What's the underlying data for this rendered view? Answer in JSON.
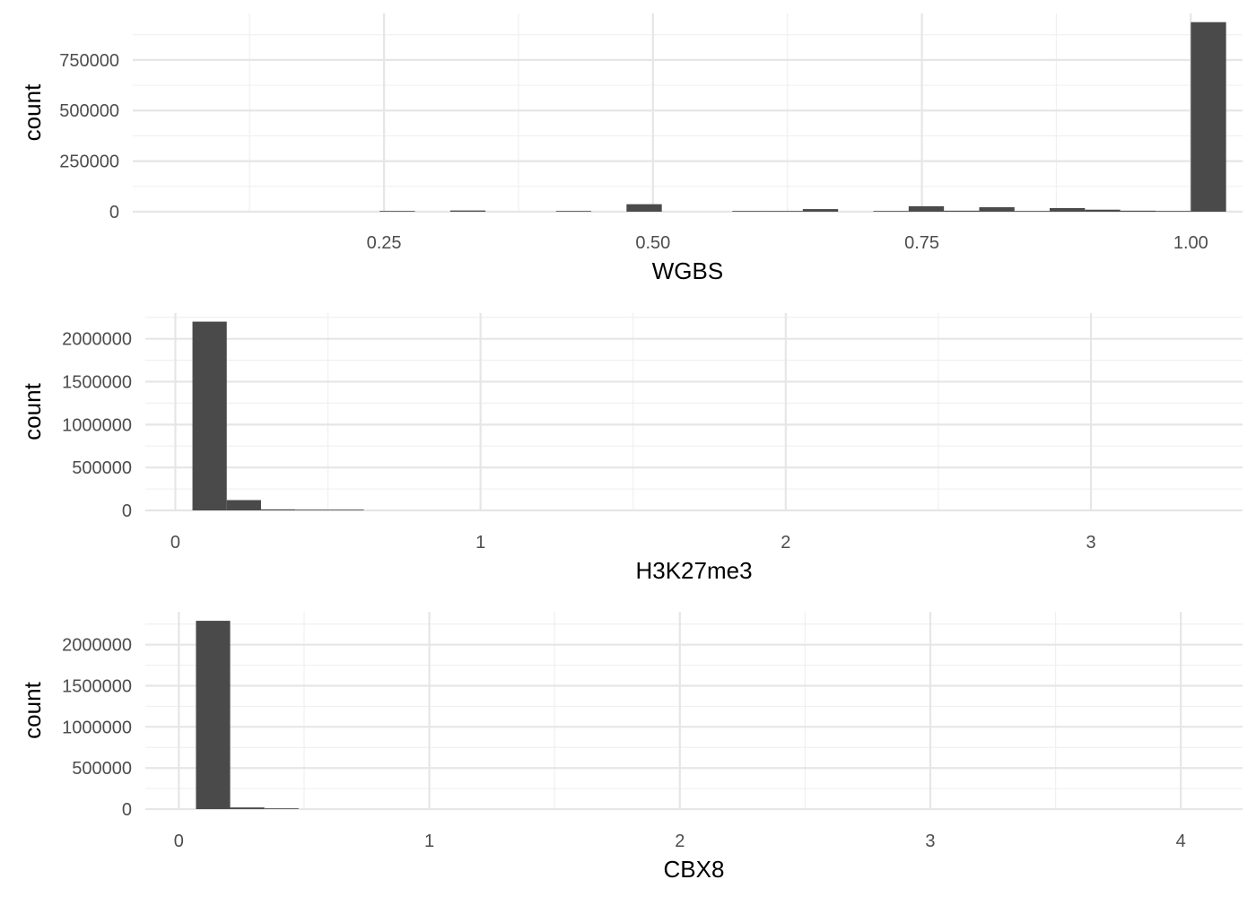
{
  "colors": {
    "bar": "#4a4a4a",
    "grid_major": "#e6e6e6",
    "grid_minor": "#f0f0f0",
    "tick_text": "#4d4d4d",
    "background": "#ffffff"
  },
  "chart_data": [
    {
      "type": "bar",
      "xlabel": "WGBS",
      "ylabel": "count",
      "grid": true,
      "xlim": [
        0.0164,
        1.0481
      ],
      "ylim": [
        0,
        980000
      ],
      "x_ticks": [
        0.25,
        0.5,
        0.75,
        1.0
      ],
      "x_tick_labels": [
        "0.25",
        "0.50",
        "0.75",
        "1.00"
      ],
      "y_ticks": [
        0,
        250000,
        500000,
        750000
      ],
      "y_tick_labels": [
        "0",
        "250000",
        "500000",
        "750000"
      ],
      "bin_width": 0.0328,
      "bins": [
        {
          "x": 0.2623,
          "count": 2000
        },
        {
          "x": 0.3279,
          "count": 6000
        },
        {
          "x": 0.4262,
          "count": 2000
        },
        {
          "x": 0.4918,
          "count": 37000
        },
        {
          "x": 0.5902,
          "count": 3000
        },
        {
          "x": 0.623,
          "count": 3000
        },
        {
          "x": 0.6557,
          "count": 13000
        },
        {
          "x": 0.7213,
          "count": 3000
        },
        {
          "x": 0.7541,
          "count": 27000
        },
        {
          "x": 0.7869,
          "count": 5000
        },
        {
          "x": 0.8197,
          "count": 22000
        },
        {
          "x": 0.8525,
          "count": 3000
        },
        {
          "x": 0.8852,
          "count": 18000
        },
        {
          "x": 0.918,
          "count": 10000
        },
        {
          "x": 0.9508,
          "count": 5000
        },
        {
          "x": 0.9836,
          "count": 2000
        },
        {
          "x": 1.0164,
          "count": 937000
        }
      ]
    },
    {
      "type": "bar",
      "xlabel": "H3K27me3",
      "ylabel": "count",
      "grid": true,
      "xlim": [
        -0.0983,
        3.4967
      ],
      "ylim": [
        0,
        2300000
      ],
      "x_ticks": [
        0,
        1,
        2,
        3
      ],
      "x_tick_labels": [
        "0",
        "1",
        "2",
        "3"
      ],
      "y_ticks": [
        0,
        500000,
        1000000,
        1500000,
        2000000
      ],
      "y_tick_labels": [
        "0",
        "500000",
        "1000000",
        "1500000",
        "2000000"
      ],
      "bin_width": 0.1123,
      "bins": [
        {
          "x": 0.1123,
          "count": 2200000
        },
        {
          "x": 0.2246,
          "count": 120000
        },
        {
          "x": 0.3369,
          "count": 12000
        },
        {
          "x": 0.4492,
          "count": 4000
        },
        {
          "x": 0.5615,
          "count": 2000
        }
      ]
    },
    {
      "type": "bar",
      "xlabel": "CBX8",
      "ylabel": "count",
      "grid": true,
      "xlim": [
        -0.1338,
        4.2464
      ],
      "ylim": [
        0,
        2400000
      ],
      "x_ticks": [
        0,
        1,
        2,
        3,
        4
      ],
      "x_tick_labels": [
        "0",
        "1",
        "2",
        "3",
        "4"
      ],
      "y_ticks": [
        0,
        500000,
        1000000,
        1500000,
        2000000
      ],
      "y_tick_labels": [
        "0",
        "500000",
        "1000000",
        "1500000",
        "2000000"
      ],
      "bin_width": 0.1366,
      "bins": [
        {
          "x": 0.1366,
          "count": 2290000
        },
        {
          "x": 0.2732,
          "count": 20000
        },
        {
          "x": 0.4098,
          "count": 3000
        }
      ]
    }
  ]
}
